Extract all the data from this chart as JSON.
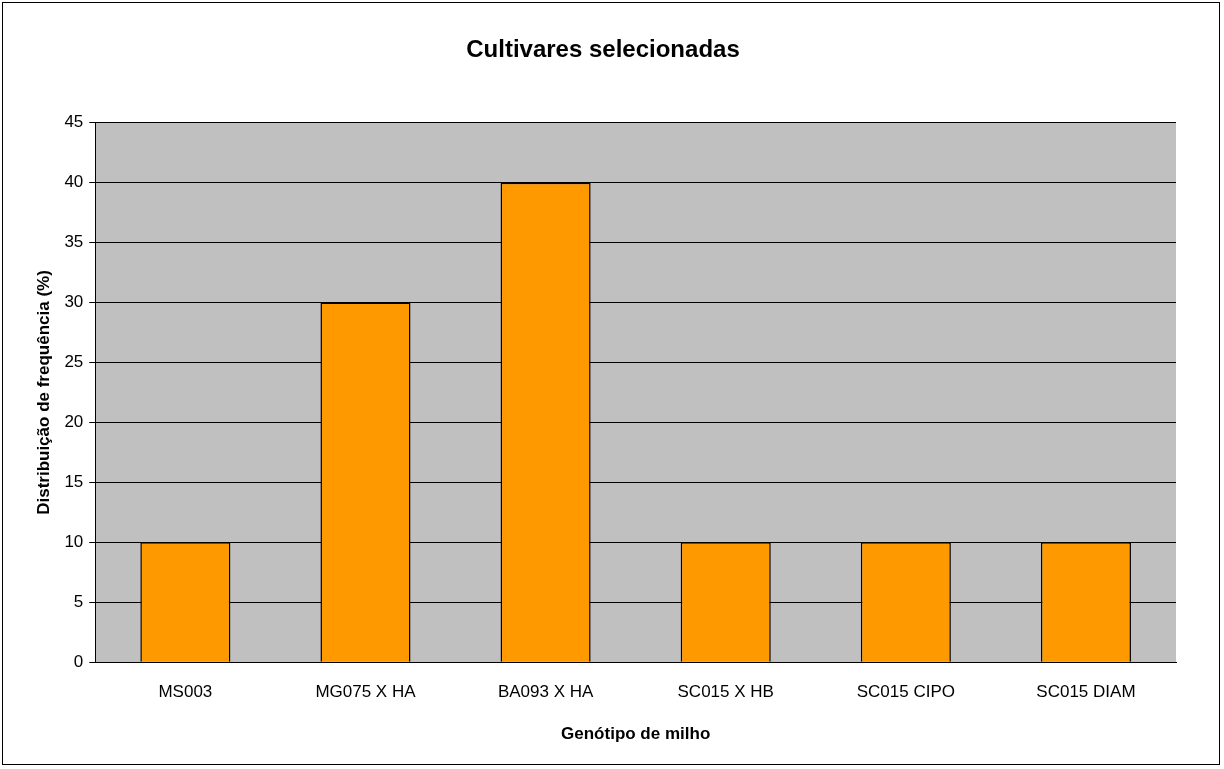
{
  "chart_data": {
    "type": "bar",
    "title": "Cultivares selecionadas",
    "xlabel": "Genótipo de milho",
    "ylabel": "Distribuição de frequência (%)",
    "categories": [
      "MS003",
      "MG075 X HA",
      "BA093 X HA",
      "SC015 X HB",
      "SC015 CIPO",
      "SC015 DIAM"
    ],
    "values": [
      10,
      30,
      40,
      10,
      10,
      10
    ],
    "color": "#ff9900",
    "ylim": [
      0,
      45
    ],
    "yticks": [
      0,
      5,
      10,
      15,
      20,
      25,
      30,
      35,
      40,
      45
    ],
    "grid": "y",
    "legend": false
  }
}
